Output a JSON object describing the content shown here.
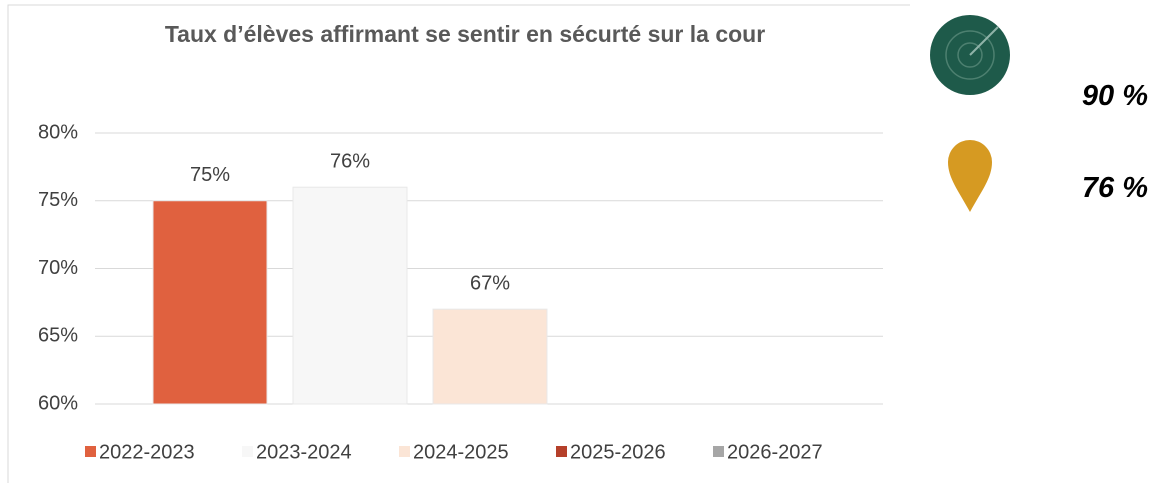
{
  "chart_data": {
    "type": "bar",
    "title": "Taux d’élèves affirmant se sentir en sécurté sur la cour",
    "categories": [
      null
    ],
    "series": [
      {
        "name": "2022-2023",
        "color": "#e0613f",
        "values": [
          75
        ],
        "value_labels": [
          "75%"
        ]
      },
      {
        "name": "2023-2024",
        "color": "#f7f7f7",
        "values": [
          76
        ],
        "value_labels": [
          "76%"
        ]
      },
      {
        "name": "2024-2025",
        "color": "#fbe5d6",
        "values": [
          67
        ],
        "value_labels": [
          "67%"
        ]
      },
      {
        "name": "2025-2026",
        "color": "#b5402a",
        "values": [
          null
        ]
      },
      {
        "name": "2026-2027",
        "color": "#a6a6a6",
        "values": [
          null
        ]
      }
    ],
    "ylim": [
      60,
      80
    ],
    "yticks": [
      {
        "value": 60,
        "label": "60%"
      },
      {
        "value": 65,
        "label": "65%"
      },
      {
        "value": 70,
        "label": "70%"
      },
      {
        "value": 75,
        "label": "75%"
      },
      {
        "value": 80,
        "label": "80%"
      }
    ],
    "grid": true
  },
  "indicators": [
    {
      "label": "90 %"
    },
    {
      "label": "76 %"
    }
  ]
}
